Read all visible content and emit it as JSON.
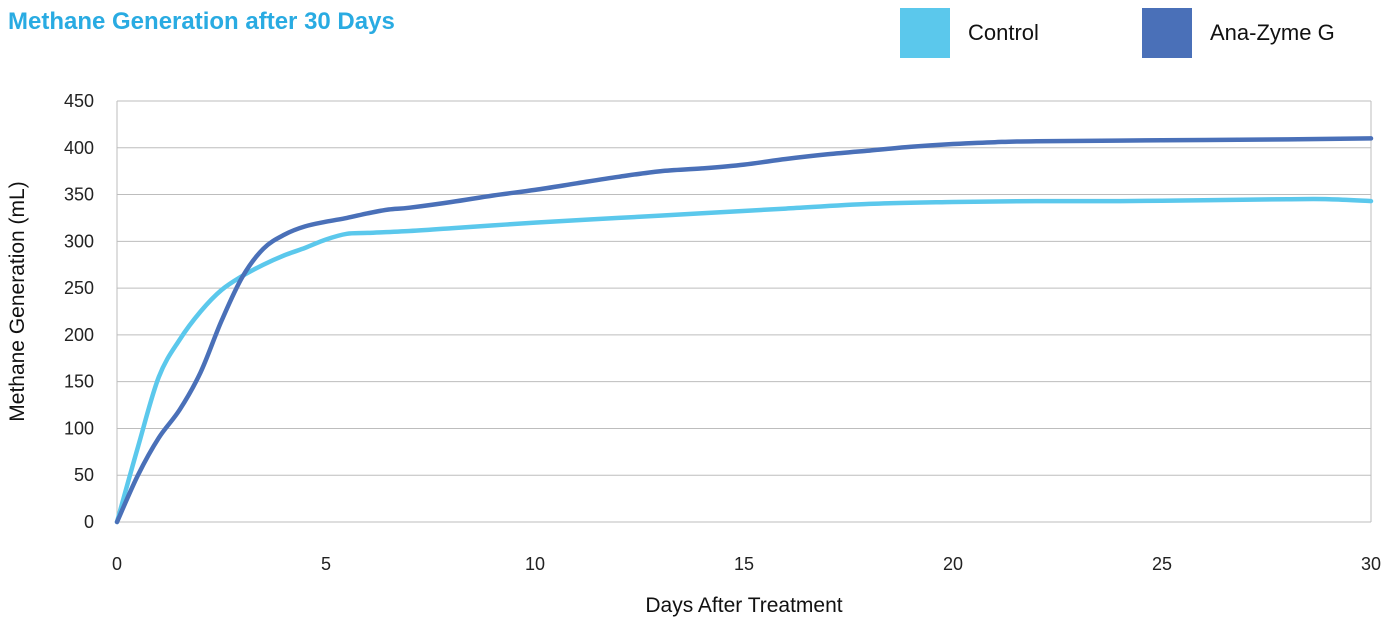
{
  "chart_data": {
    "type": "line",
    "title": "Methane Generation after 30 Days",
    "xlabel": "Days After Treatment",
    "ylabel": "Methane Generation (mL)",
    "xlim": [
      0,
      30
    ],
    "ylim": [
      0,
      450
    ],
    "x_ticks": [
      "0",
      "5",
      "10",
      "15",
      "20",
      "25",
      "30"
    ],
    "y_ticks": [
      "0",
      "50",
      "100",
      "150",
      "200",
      "250",
      "300",
      "350",
      "400",
      "450"
    ],
    "grid": "horizontal",
    "legend_position": "top-right",
    "series": [
      {
        "name": "Control",
        "color": "#5bc8ec",
        "x": [
          0,
          0.5,
          1,
          1.5,
          2,
          2.5,
          3,
          3.5,
          4,
          4.5,
          5,
          5.5,
          6,
          7,
          8,
          9,
          10,
          12,
          14,
          16,
          18,
          20,
          22,
          24,
          26,
          28,
          29,
          30
        ],
        "y": [
          0,
          80,
          155,
          195,
          225,
          248,
          263,
          275,
          285,
          293,
          302,
          308,
          309,
          311,
          314,
          317,
          320,
          325,
          330,
          335,
          340,
          342,
          343,
          343,
          344,
          345,
          345,
          343
        ]
      },
      {
        "name": "Ana-Zyme G",
        "color": "#4a70b8",
        "x": [
          0,
          0.5,
          1,
          1.5,
          2,
          2.5,
          3,
          3.5,
          4,
          4.5,
          5,
          5.5,
          6,
          6.5,
          7,
          8,
          9,
          10,
          11,
          12,
          13,
          14,
          15,
          16,
          17,
          18,
          19,
          20,
          21,
          22,
          25,
          28,
          30
        ],
        "y": [
          0,
          50,
          90,
          120,
          160,
          215,
          262,
          292,
          307,
          316,
          321,
          325,
          330,
          334,
          336,
          342,
          349,
          355,
          362,
          369,
          375,
          378,
          382,
          388,
          393,
          397,
          401,
          404,
          406,
          407,
          408,
          409,
          410
        ]
      }
    ]
  }
}
